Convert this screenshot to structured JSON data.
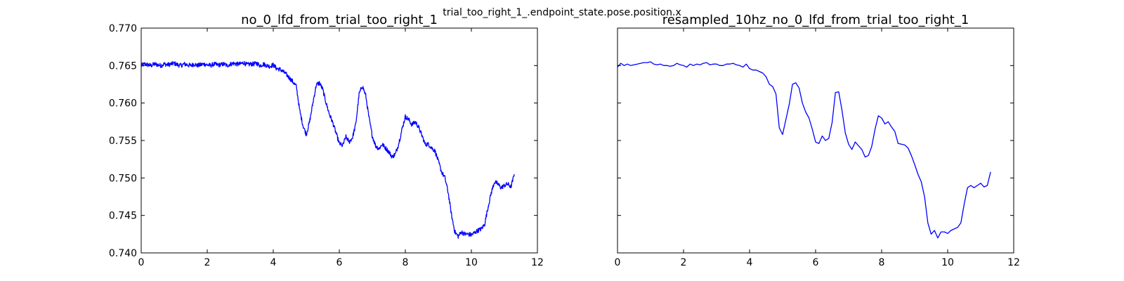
{
  "figure_title": "trial_too_right_1_.endpoint_state.pose.position.x",
  "colors": {
    "line": "#0000ff",
    "axes": "#000000",
    "background": "#ffffff"
  },
  "chart_data": [
    {
      "type": "line",
      "title": "no_0_lfd_from_trial_too_right_1",
      "xlabel": "",
      "ylabel": "",
      "xlim": [
        0,
        12
      ],
      "ylim": [
        0.74,
        0.77
      ],
      "xticks": [
        "0",
        "2",
        "4",
        "6",
        "8",
        "10",
        "12"
      ],
      "yticks": [
        "0.740",
        "0.745",
        "0.750",
        "0.755",
        "0.760",
        "0.765",
        "0.770"
      ],
      "grid": false,
      "legend": "none",
      "series": [
        {
          "noise": 0.0006,
          "x": [
            0.0,
            0.1,
            0.2,
            0.3,
            0.4,
            0.5,
            0.6,
            0.7,
            0.8,
            0.9,
            1.0,
            1.1,
            1.2,
            1.3,
            1.4,
            1.5,
            1.6,
            1.7,
            1.8,
            1.9,
            2.0,
            2.1,
            2.2,
            2.3,
            2.4,
            2.5,
            2.6,
            2.7,
            2.8,
            2.9,
            3.0,
            3.1,
            3.2,
            3.3,
            3.4,
            3.5,
            3.6,
            3.7,
            3.8,
            3.9,
            4.0,
            4.1,
            4.2,
            4.3,
            4.4,
            4.5,
            4.6,
            4.7,
            4.8,
            4.9,
            5.0,
            5.1,
            5.2,
            5.3,
            5.4,
            5.5,
            5.6,
            5.7,
            5.8,
            5.9,
            6.0,
            6.1,
            6.2,
            6.3,
            6.4,
            6.5,
            6.6,
            6.7,
            6.8,
            6.9,
            7.0,
            7.1,
            7.2,
            7.3,
            7.4,
            7.5,
            7.6,
            7.7,
            7.8,
            7.9,
            8.0,
            8.1,
            8.2,
            8.3,
            8.4,
            8.5,
            8.6,
            8.7,
            8.8,
            8.9,
            9.0,
            9.1,
            9.2,
            9.3,
            9.4,
            9.5,
            9.6,
            9.7,
            9.8,
            9.9,
            10.0,
            10.1,
            10.2,
            10.3,
            10.4,
            10.5,
            10.6,
            10.7,
            10.8,
            10.9,
            11.0,
            11.1,
            11.2,
            11.3
          ],
          "y": [
            0.765,
            0.7652,
            0.7651,
            0.765,
            0.7652,
            0.7651,
            0.765,
            0.7652,
            0.7651,
            0.7652,
            0.7653,
            0.7651,
            0.765,
            0.7652,
            0.7651,
            0.765,
            0.7652,
            0.765,
            0.7651,
            0.7652,
            0.7651,
            0.765,
            0.7652,
            0.7651,
            0.7651,
            0.7652,
            0.765,
            0.7652,
            0.7653,
            0.7652,
            0.7652,
            0.7654,
            0.7651,
            0.7652,
            0.7652,
            0.7653,
            0.765,
            0.7652,
            0.765,
            0.7649,
            0.7651,
            0.7646,
            0.7645,
            0.7642,
            0.7638,
            0.7633,
            0.7628,
            0.7622,
            0.759,
            0.757,
            0.7558,
            0.7575,
            0.76,
            0.7624,
            0.7627,
            0.7618,
            0.76,
            0.7585,
            0.7574,
            0.756,
            0.7546,
            0.7543,
            0.7555,
            0.7548,
            0.7554,
            0.7572,
            0.7612,
            0.7623,
            0.761,
            0.758,
            0.7556,
            0.7543,
            0.7539,
            0.7545,
            0.754,
            0.7535,
            0.7528,
            0.7532,
            0.7546,
            0.7565,
            0.7582,
            0.7578,
            0.7571,
            0.7575,
            0.7568,
            0.7557,
            0.7545,
            0.7545,
            0.754,
            0.7536,
            0.7522,
            0.7508,
            0.75,
            0.748,
            0.745,
            0.7428,
            0.7422,
            0.7428,
            0.7425,
            0.7425,
            0.7424,
            0.7427,
            0.743,
            0.7432,
            0.7438,
            0.746,
            0.748,
            0.7495,
            0.7492,
            0.7487,
            0.749,
            0.7492,
            0.7488,
            0.7505
          ]
        }
      ]
    },
    {
      "type": "line",
      "title": "resampled_10hz_no_0_lfd_from_trial_too_right_1",
      "xlabel": "",
      "ylabel": "",
      "xlim": [
        0,
        12
      ],
      "ylim": [
        0.74,
        0.77
      ],
      "xticks": [
        "0",
        "2",
        "4",
        "6",
        "8",
        "10",
        "12"
      ],
      "yticks": [],
      "grid": false,
      "legend": "none",
      "series": [
        {
          "noise": 0,
          "x": [
            0.0,
            0.1,
            0.2,
            0.3,
            0.4,
            0.5,
            0.6,
            0.7,
            0.8,
            0.9,
            1.0,
            1.1,
            1.2,
            1.3,
            1.4,
            1.5,
            1.6,
            1.7,
            1.8,
            1.9,
            2.0,
            2.1,
            2.2,
            2.3,
            2.4,
            2.5,
            2.6,
            2.7,
            2.8,
            2.9,
            3.0,
            3.1,
            3.2,
            3.3,
            3.4,
            3.5,
            3.6,
            3.7,
            3.8,
            3.9,
            4.0,
            4.1,
            4.2,
            4.3,
            4.4,
            4.5,
            4.6,
            4.7,
            4.8,
            4.9,
            5.0,
            5.1,
            5.2,
            5.3,
            5.4,
            5.5,
            5.6,
            5.7,
            5.8,
            5.9,
            6.0,
            6.1,
            6.2,
            6.3,
            6.4,
            6.5,
            6.6,
            6.7,
            6.8,
            6.9,
            7.0,
            7.1,
            7.2,
            7.3,
            7.4,
            7.5,
            7.6,
            7.7,
            7.8,
            7.9,
            8.0,
            8.1,
            8.2,
            8.3,
            8.4,
            8.5,
            8.6,
            8.7,
            8.8,
            8.9,
            9.0,
            9.1,
            9.2,
            9.3,
            9.4,
            9.5,
            9.6,
            9.7,
            9.8,
            9.9,
            10.0,
            10.1,
            10.2,
            10.3,
            10.4,
            10.5,
            10.6,
            10.7,
            10.8,
            10.9,
            11.0,
            11.1,
            11.2,
            11.3
          ],
          "y": [
            0.7648,
            0.7653,
            0.765,
            0.7652,
            0.765,
            0.7651,
            0.7652,
            0.7653,
            0.7654,
            0.7654,
            0.7655,
            0.7652,
            0.7651,
            0.7652,
            0.765,
            0.765,
            0.7649,
            0.765,
            0.7653,
            0.7651,
            0.765,
            0.7648,
            0.7652,
            0.765,
            0.7652,
            0.7651,
            0.7653,
            0.7654,
            0.7651,
            0.7652,
            0.7652,
            0.765,
            0.765,
            0.7652,
            0.7652,
            0.7653,
            0.7651,
            0.765,
            0.7648,
            0.7652,
            0.7646,
            0.7644,
            0.7644,
            0.7642,
            0.764,
            0.7635,
            0.7625,
            0.7622,
            0.7612,
            0.7567,
            0.7558,
            0.7578,
            0.7598,
            0.7625,
            0.7627,
            0.762,
            0.76,
            0.7588,
            0.758,
            0.7565,
            0.7548,
            0.7546,
            0.7556,
            0.755,
            0.7553,
            0.7574,
            0.7614,
            0.7615,
            0.759,
            0.756,
            0.7545,
            0.7538,
            0.7548,
            0.7543,
            0.7538,
            0.7528,
            0.753,
            0.7542,
            0.7565,
            0.7583,
            0.758,
            0.7572,
            0.7575,
            0.7568,
            0.7562,
            0.7546,
            0.7545,
            0.7544,
            0.754,
            0.753,
            0.7518,
            0.7505,
            0.7495,
            0.7475,
            0.744,
            0.7425,
            0.743,
            0.742,
            0.7428,
            0.7428,
            0.7426,
            0.743,
            0.7432,
            0.7434,
            0.744,
            0.7465,
            0.7487,
            0.749,
            0.7487,
            0.749,
            0.7493,
            0.7488,
            0.749,
            0.7508
          ]
        }
      ]
    }
  ]
}
